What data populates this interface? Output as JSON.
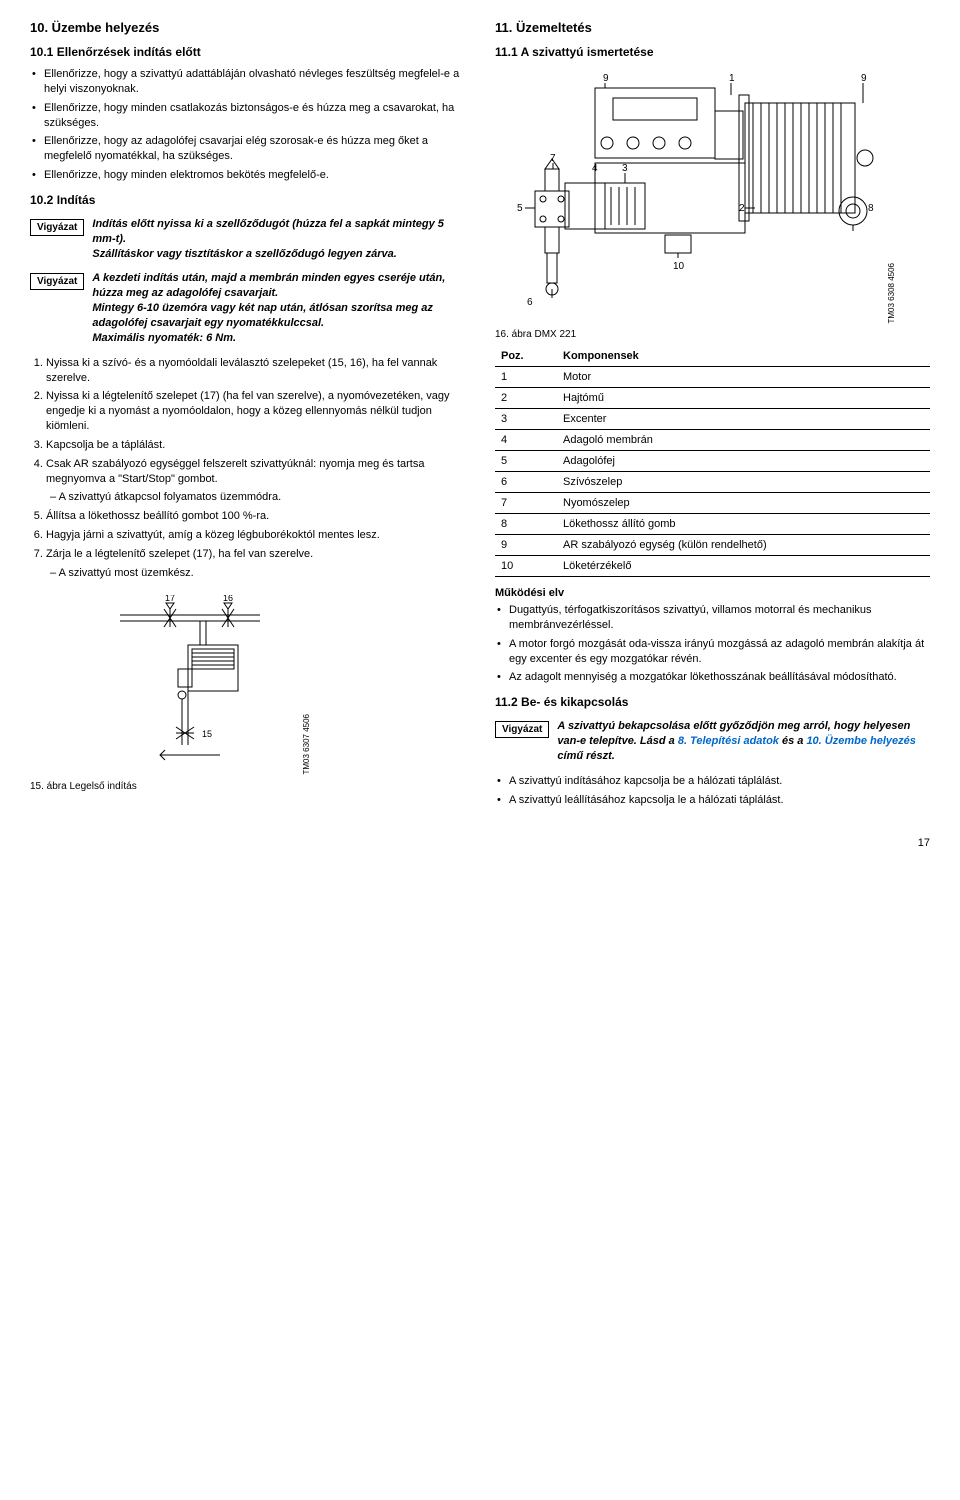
{
  "left": {
    "h2": "10. Üzembe helyezés",
    "h3_1": "10.1 Ellenőrzések indítás előtt",
    "bullets1": [
      "Ellenőrizze, hogy a szivattyú adattábláján olvasható névleges feszültség megfelel-e a helyi viszonyoknak.",
      "Ellenőrizze, hogy minden csatlakozás biztonságos-e és húzza meg a csavarokat, ha szükséges.",
      "Ellenőrizze, hogy az adagolófej csavarjai elég szorosak-e és húzza meg őket a megfelelő nyomatékkal, ha szükséges.",
      "Ellenőrizze, hogy minden elektromos bekötés megfelelő-e."
    ],
    "h3_2": "10.2 Indítás",
    "caution_label": "Vigyázat",
    "caution1": "Indítás előtt nyissa ki a szellőződugót (húzza fel a sapkát mintegy 5 mm-t).\nSzállításkor vagy tisztításkor a szellőződugó legyen zárva.",
    "caution2": "A kezdeti indítás után, majd a membrán minden egyes cseréje után, húzza meg az adagolófej csavarjait.\nMintegy 6-10 üzemóra vagy két nap után, átlósan szorítsa meg az adagolófej csavarjait egy nyomatékkulccsal.\nMaximális nyomaték: 6 Nm.",
    "step1": "Nyissa ki a szívó- és a nyomóoldali leválasztó szelepeket (15, 16), ha fel vannak szerelve.",
    "step2": "Nyissa ki a légtelenítő szelepet (17) (ha fel van szerelve), a nyomóvezetéken, vagy engedje ki a nyomást a nyomóoldalon, hogy a közeg ellennyomás nélkül tudjon kiömleni.",
    "step3": "Kapcsolja be a táplálást.",
    "step4": "Csak AR szabályozó egységgel felszerelt szivattyúknál: nyomja meg és tartsa megnyomva a \"Start/Stop\" gombot.",
    "step4_sub": "A szivattyú átkapcsol folyamatos üzemmódra.",
    "step5": "Állítsa a lökethossz beállító gombot 100 %-ra.",
    "step6": "Hagyja járni a szivattyút, amíg a közeg légbuborékoktól mentes lesz.",
    "step7": "Zárja le a légtelenítő szelepet (17), ha fel van szerelve.",
    "step7_sub": "A szivattyú most üzemkész.",
    "fig15_caption": "15. ábra  Legelső indítás",
    "fig15_code": "TM03 6307 4506",
    "fig15_labels": {
      "n15": "15",
      "n16": "16",
      "n17": "17"
    }
  },
  "right": {
    "h2": "11. Üzemeltetés",
    "h3_1": "11.1 A szivattyú ismertetése",
    "fig16_caption": "16. ábra DMX 221",
    "fig16_code": "TM03 6308 4506",
    "diag_labels": {
      "n1": "1",
      "n2": "2",
      "n3": "3",
      "n4": "4",
      "n5": "5",
      "n6": "6",
      "n7": "7",
      "n8": "8",
      "n9": "9",
      "n10": "10"
    },
    "table_h1": "Poz.",
    "table_h2": "Komponensek",
    "rows": [
      [
        "1",
        "Motor"
      ],
      [
        "2",
        "Hajtómű"
      ],
      [
        "3",
        "Excenter"
      ],
      [
        "4",
        "Adagoló membrán"
      ],
      [
        "5",
        "Adagolófej"
      ],
      [
        "6",
        "Szívószelep"
      ],
      [
        "7",
        "Nyomószelep"
      ],
      [
        "8",
        "Lökethossz állító gomb"
      ],
      [
        "9",
        "AR szabályozó egység (külön rendelhető)"
      ],
      [
        "10",
        "Löketérzékelő"
      ]
    ],
    "h4_elv": "Működési elv",
    "elv_bullets": [
      "Dugattyús, térfogatkiszorításos szivattyú, villamos motorral és mechanikus membránvezérléssel.",
      "A motor forgó mozgását oda-vissza irányú mozgássá az adagoló membrán alakítja át egy excenter és egy mozgatókar révén.",
      "Az adagolt mennyiség a mozgatókar lökethosszának beállításával módosítható."
    ],
    "h3_2": "11.2 Be- és kikapcsolás",
    "caution3_plain": "A szivattyú bekapcsolása előtt győződjön meg arról, hogy helyesen van-e telepítve. Lásd a ",
    "caution3_link1": "8. Telepítési adatok",
    "caution3_mid": " és a ",
    "caution3_link2": "10. Üzembe helyezés",
    "caution3_end": " című részt.",
    "end_bullets": [
      "A szivattyú indításához kapcsolja be a hálózati táplálást.",
      "A szivattyú leállításához kapcsolja le a hálózati táplálást."
    ]
  },
  "pagenum": "17"
}
